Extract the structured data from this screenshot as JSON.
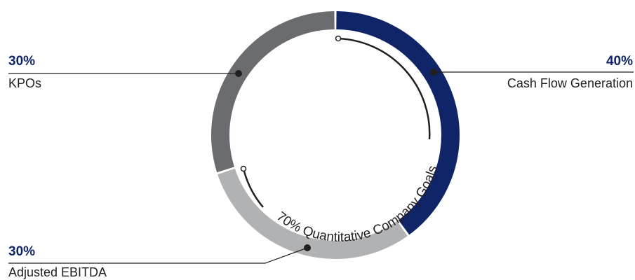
{
  "chart_data": {
    "type": "pie",
    "categories": [
      "Cash Flow Generation",
      "Adjusted EBITDA",
      "KPOs"
    ],
    "values": [
      40,
      30,
      30
    ],
    "value_labels": [
      "40%",
      "30%",
      "30%"
    ],
    "colors": [
      "#0f2567",
      "#b1b2b4",
      "#6b6c6f"
    ],
    "annotation": "70% Quantitative Company Goals",
    "style": "donut ring"
  }
}
